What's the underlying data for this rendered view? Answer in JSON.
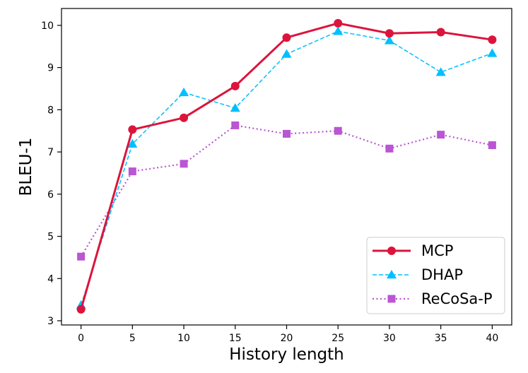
{
  "chart_data": {
    "type": "line",
    "title": "",
    "xlabel": "History length",
    "ylabel": "BLEU-1",
    "x": [
      0,
      5,
      10,
      15,
      20,
      25,
      30,
      35,
      40
    ],
    "xticks": [
      "0",
      "5",
      "10",
      "15",
      "20",
      "25",
      "30",
      "35",
      "40"
    ],
    "yticks": [
      "3",
      "4",
      "5",
      "6",
      "7",
      "8",
      "9",
      "10"
    ],
    "xlim": [
      -1.9,
      41.9
    ],
    "ylim": [
      2.9,
      10.4
    ],
    "grid": false,
    "legend_position": "bottom-right",
    "series": [
      {
        "name": "MCP",
        "values": [
          3.27,
          7.53,
          7.81,
          8.56,
          9.71,
          10.05,
          9.81,
          9.84,
          9.66
        ],
        "color": "#dc143c",
        "line_style": "solid",
        "marker": "circle"
      },
      {
        "name": "DHAP",
        "values": [
          3.37,
          7.19,
          8.41,
          8.04,
          9.32,
          9.86,
          9.64,
          8.89,
          9.34
        ],
        "color": "#00bfff",
        "line_style": "dashed",
        "marker": "triangle"
      },
      {
        "name": "ReCoSa-P",
        "values": [
          4.52,
          6.54,
          6.72,
          7.63,
          7.43,
          7.5,
          7.08,
          7.41,
          7.16
        ],
        "color": "#ba55d3",
        "line_style": "dotted",
        "marker": "square"
      }
    ]
  }
}
